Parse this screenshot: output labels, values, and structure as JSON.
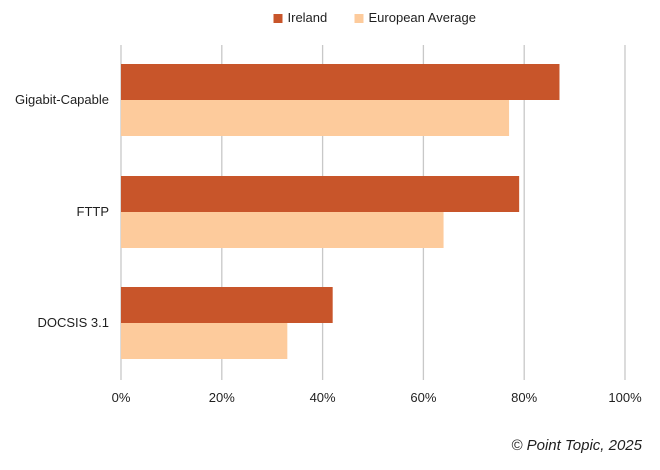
{
  "chart_data": {
    "type": "bar",
    "orientation": "horizontal",
    "categories": [
      "Gigabit-Capable",
      "FTTP",
      "DOCSIS 3.1"
    ],
    "series": [
      {
        "name": "Ireland",
        "values": [
          87,
          79,
          42
        ],
        "color": "#c8552a"
      },
      {
        "name": "European Average",
        "values": [
          77,
          64,
          33
        ],
        "color": "#fdcb9c"
      }
    ],
    "xlim": [
      0,
      100
    ],
    "xticks": [
      0,
      20,
      40,
      60,
      80,
      100
    ],
    "tick_format": "percent",
    "grid": true,
    "legend_position": "top-center"
  },
  "credit": "© Point Topic, 2025",
  "colors": {
    "gridline": "#c8c8c8",
    "text": "#1f1f1f"
  }
}
